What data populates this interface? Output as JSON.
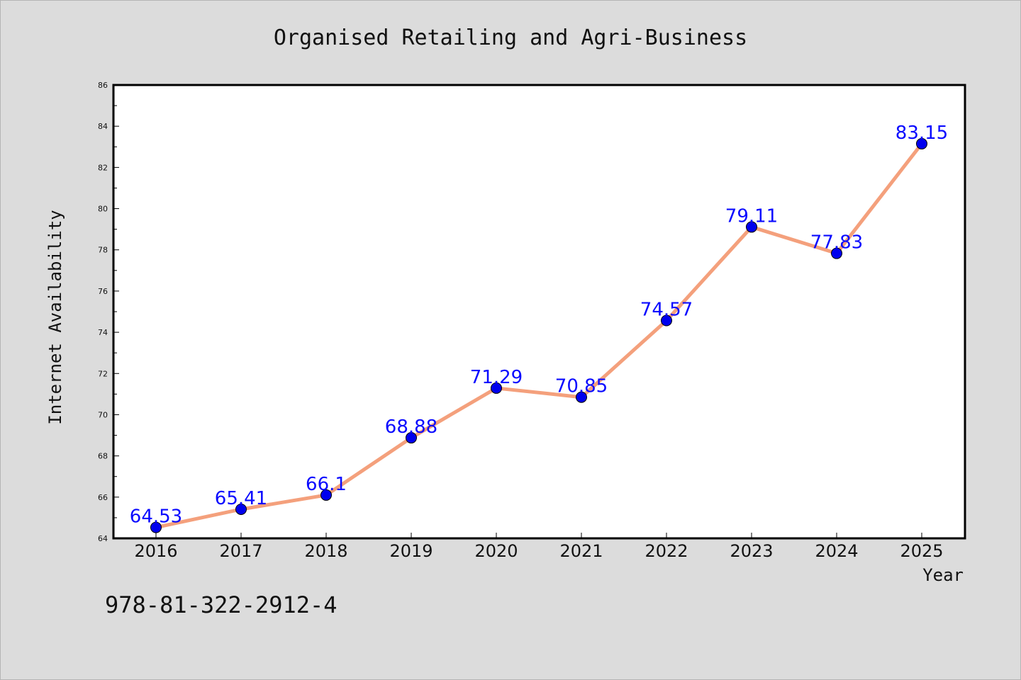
{
  "chart_data": {
    "type": "line",
    "title": "Organised Retailing and Agri-Business",
    "xlabel": "Year",
    "ylabel": "Internet Availability",
    "categories": [
      "2016",
      "2017",
      "2018",
      "2019",
      "2020",
      "2021",
      "2022",
      "2023",
      "2024",
      "2025"
    ],
    "series": [
      {
        "values": [
          64.53,
          65.41,
          66.1,
          68.88,
          71.29,
          70.85,
          74.57,
          79.11,
          77.83,
          83.15
        ],
        "labels": [
          "64.53",
          "65.41",
          "66.1",
          "68.88",
          "71.29",
          "70.85",
          "74.57",
          "79.11",
          "77.83",
          "83.15"
        ],
        "line_color": "#f4a07c",
        "marker_color": "#0000ee"
      }
    ],
    "ylim": [
      64,
      86
    ],
    "yticks": [
      "64",
      "66",
      "68",
      "70",
      "72",
      "74",
      "76",
      "78",
      "80",
      "82",
      "84",
      "86"
    ],
    "grid": false,
    "legend": "none"
  },
  "annotation": "978-81-322-2912-4",
  "colors": {
    "background": "#dcdcdc",
    "plot_background": "#ffffff",
    "data_label": "#0a0aff"
  }
}
